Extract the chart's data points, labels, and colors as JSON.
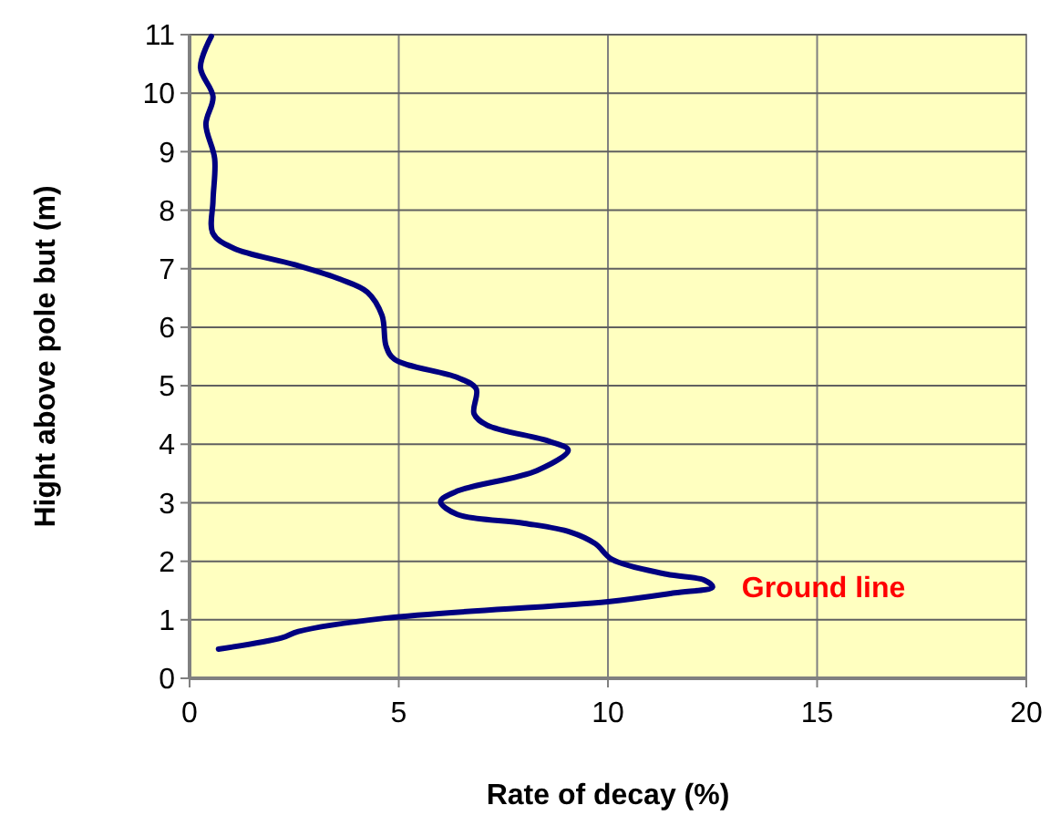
{
  "chart_data": {
    "type": "line",
    "xlabel": "Rate of decay (%)",
    "ylabel": "Hight above pole but (m)",
    "xlim": [
      0,
      20
    ],
    "xticks": [
      0,
      5,
      10,
      15,
      20
    ],
    "ylim": [
      0,
      11
    ],
    "yticks": [
      0,
      1,
      2,
      3,
      4,
      5,
      6,
      7,
      8,
      9,
      10,
      11
    ],
    "grid": true,
    "series": [
      {
        "color": "#000080",
        "x": [
          0.69,
          2.2,
          2.6,
          4.7,
          10.0,
          11.6,
          12.5,
          12.3,
          11.4,
          10.1,
          9.7,
          9.1,
          8.0,
          6.4,
          6.0,
          6.4,
          8.3,
          9.05,
          8.6,
          7.1,
          6.8,
          6.85,
          6.4,
          4.9,
          4.7,
          4.6,
          4.25,
          3.6,
          2.5,
          1.05,
          0.56,
          0.56,
          0.6,
          0.39,
          0.56,
          0.26,
          0.52
        ],
        "values": [
          0.5,
          0.69,
          0.8,
          1.03,
          1.31,
          1.46,
          1.56,
          1.68,
          1.78,
          2.03,
          2.3,
          2.5,
          2.65,
          2.8,
          3.02,
          3.2,
          3.55,
          3.9,
          4.05,
          4.33,
          4.52,
          4.95,
          5.14,
          5.45,
          5.67,
          6.2,
          6.6,
          6.82,
          7.07,
          7.35,
          7.6,
          8.16,
          8.88,
          9.47,
          9.94,
          10.44,
          10.97
        ]
      }
    ],
    "annotations": [
      {
        "text": "Ground line",
        "x": 12.5,
        "y": 1.56
      }
    ]
  }
}
